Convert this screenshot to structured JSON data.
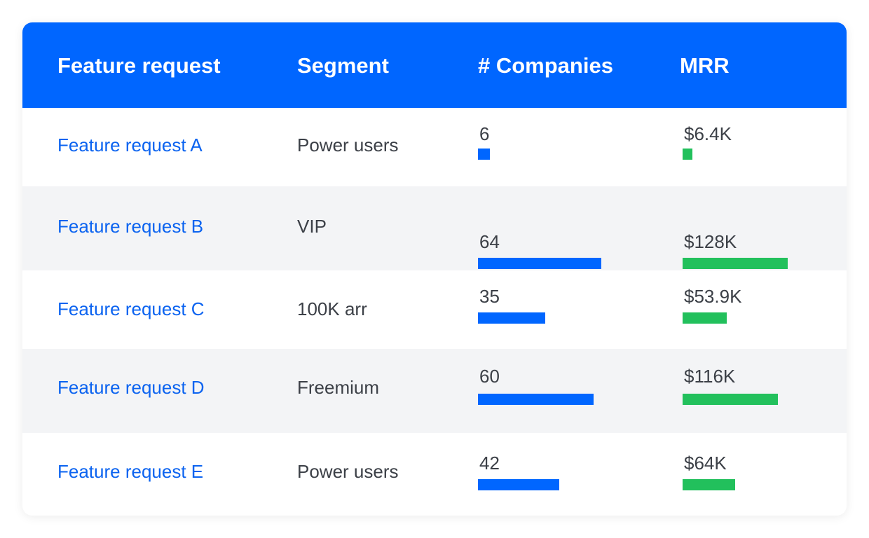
{
  "colors": {
    "header_bg": "#0066ff",
    "link": "#0b63f0",
    "companies_bar": "#0066ff",
    "mrr_bar": "#22c05c",
    "row_alt": "#f3f4f6",
    "text": "#3c4047"
  },
  "table": {
    "headers": [
      "Feature request",
      "Segment",
      "# Companies",
      "MRR"
    ],
    "rows": [
      {
        "feature": "Feature request A",
        "segment": "Power users",
        "companies": "6",
        "companies_value": 6,
        "mrr": "$6.4K",
        "mrr_value": 6.4
      },
      {
        "feature": "Feature request B",
        "segment": "VIP",
        "companies": "64",
        "companies_value": 64,
        "mrr": "$128K",
        "mrr_value": 128
      },
      {
        "feature": "Feature request C",
        "segment": "100K arr",
        "companies": "35",
        "companies_value": 35,
        "mrr": "$53.9K",
        "mrr_value": 53.9
      },
      {
        "feature": "Feature request D",
        "segment": "Freemium",
        "companies": "60",
        "companies_value": 60,
        "mrr": "$116K",
        "mrr_value": 116
      },
      {
        "feature": "Feature request E",
        "segment": "Power users",
        "companies": "42",
        "companies_value": 42,
        "mrr": "$64K",
        "mrr_value": 64
      }
    ]
  }
}
